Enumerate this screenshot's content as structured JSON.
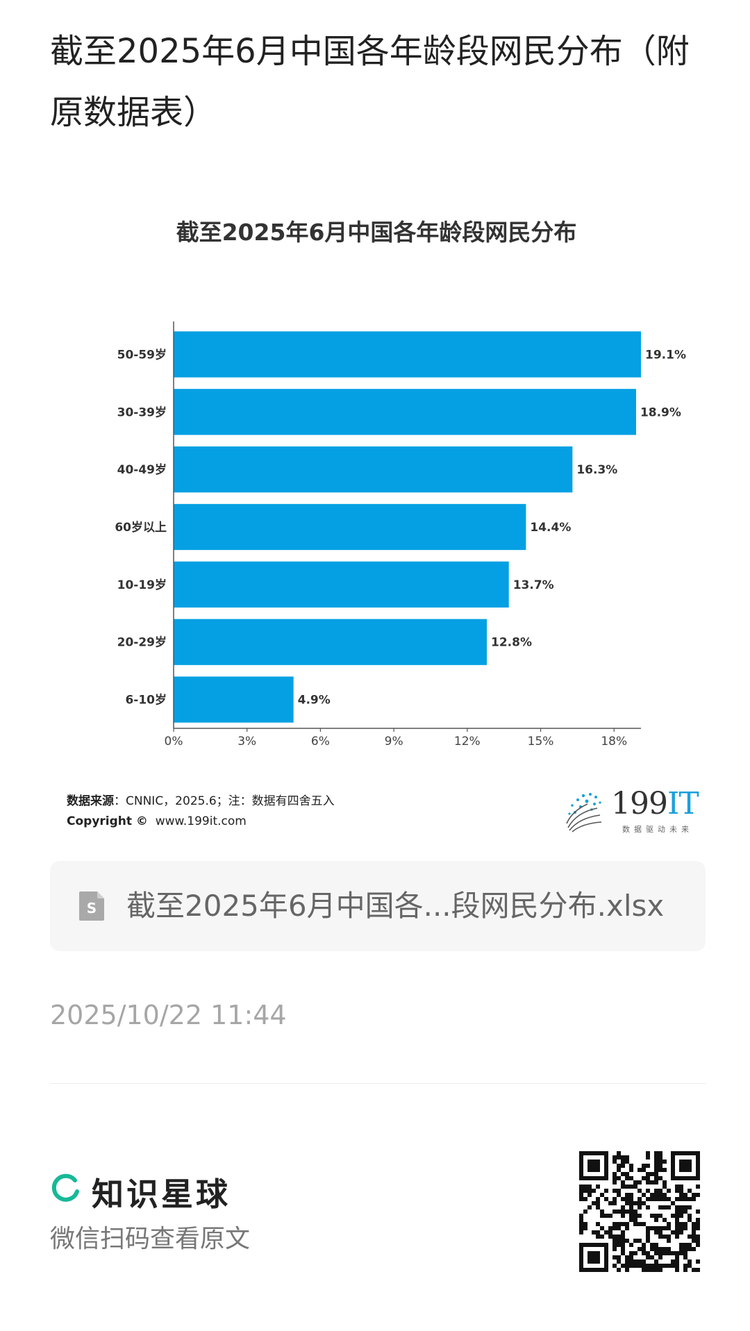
{
  "page": {
    "title": "截至2025年6月中国各年龄段网民分布（附原数据表）"
  },
  "chart_data": {
    "type": "bar",
    "orientation": "horizontal",
    "title": "截至2025年6月中国各年龄段网民分布",
    "categories": [
      "50-59岁",
      "30-39岁",
      "40-49岁",
      "60岁以上",
      "10-19岁",
      "20-29岁",
      "6-10岁"
    ],
    "values": [
      19.1,
      18.9,
      16.3,
      14.4,
      13.7,
      12.8,
      4.9
    ],
    "value_labels": [
      "19.1%",
      "18.9%",
      "16.3%",
      "14.4%",
      "13.7%",
      "12.8%",
      "4.9%"
    ],
    "xticks": [
      "0%",
      "3%",
      "6%",
      "9%",
      "12%",
      "15%",
      "18%"
    ],
    "xtick_values": [
      0,
      3,
      6,
      9,
      12,
      15,
      18
    ],
    "xlim": [
      0,
      19.1
    ],
    "bar_color": "#05a0e3",
    "grid": false,
    "xlabel": "",
    "ylabel": ""
  },
  "source": {
    "label": "数据来源",
    "text": "：CNNIC，2025.6；注：数据有四舍五入",
    "copyright_label": "Copyright ©",
    "site": "www.199it.com"
  },
  "logo": {
    "main": "199",
    "accent": "IT",
    "tagline": "数据驱动未来"
  },
  "attachment": {
    "icon": "spreadsheet-file-icon",
    "filename": "截至2025年6月中国各...段网民分布.xlsx"
  },
  "timestamp": "2025/10/22 11:44",
  "footer": {
    "brand": "知识星球",
    "brand_color": "#16b998",
    "scan_hint": "微信扫码查看原文"
  }
}
